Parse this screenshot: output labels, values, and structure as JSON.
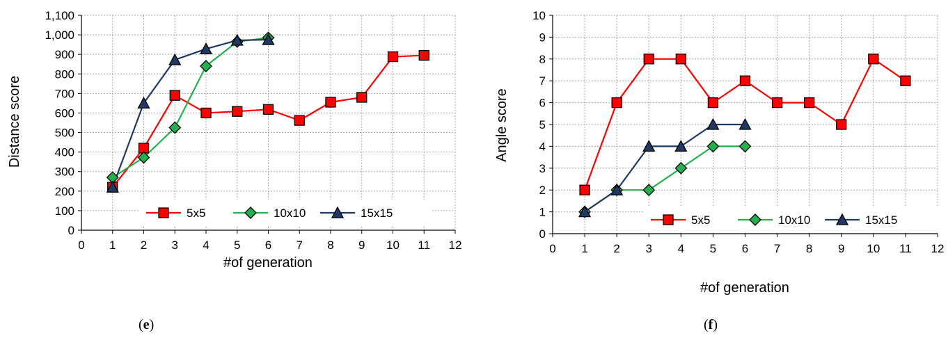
{
  "chart_data": [
    {
      "type": "line",
      "panel_label": "e",
      "title": "",
      "xlabel": "#of generation",
      "ylabel": "Distance score",
      "xlim": [
        0,
        12
      ],
      "ylim": [
        0,
        1100
      ],
      "xticks": [
        0,
        1,
        2,
        3,
        4,
        5,
        6,
        7,
        8,
        9,
        10,
        11,
        12
      ],
      "yticks": [
        0,
        100,
        200,
        300,
        400,
        500,
        600,
        700,
        800,
        900,
        1000,
        1100
      ],
      "ytick_labels": [
        "0",
        "100",
        "200",
        "300",
        "400",
        "500",
        "600",
        "700",
        "800",
        "900",
        "1,000",
        "1,100"
      ],
      "grid": true,
      "legend_position": "bottom-right",
      "series": [
        {
          "name": "5x5",
          "color": "#ff0000",
          "marker": "square",
          "x": [
            1,
            2,
            3,
            4,
            5,
            6,
            7,
            8,
            9,
            10,
            11
          ],
          "y": [
            220,
            420,
            690,
            600,
            608,
            618,
            562,
            655,
            680,
            888,
            895
          ]
        },
        {
          "name": "10x10",
          "color": "#22b14c",
          "marker": "diamond",
          "x": [
            1,
            2,
            3,
            4,
            5,
            6
          ],
          "y": [
            270,
            372,
            525,
            840,
            965,
            985
          ]
        },
        {
          "name": "15x15",
          "color": "#1f3864",
          "marker": "triangle",
          "x": [
            1,
            2,
            3,
            4,
            5,
            6
          ],
          "y": [
            220,
            650,
            872,
            928,
            972,
            975
          ]
        }
      ]
    },
    {
      "type": "line",
      "panel_label": "f",
      "title": "",
      "xlabel": "#of generation",
      "ylabel": "Angle score",
      "xlim": [
        0,
        12
      ],
      "ylim": [
        0,
        10
      ],
      "xticks": [
        0,
        1,
        2,
        3,
        4,
        5,
        6,
        7,
        8,
        9,
        10,
        11,
        12
      ],
      "yticks": [
        0,
        1,
        2,
        3,
        4,
        5,
        6,
        7,
        8,
        9,
        10
      ],
      "ytick_labels": [
        "0",
        "1",
        "2",
        "3",
        "4",
        "5",
        "6",
        "7",
        "8",
        "9",
        "10"
      ],
      "grid": true,
      "legend_position": "bottom-right",
      "series": [
        {
          "name": "5x5",
          "color": "#ff0000",
          "marker": "square",
          "x": [
            1,
            2,
            3,
            4,
            5,
            6,
            7,
            8,
            9,
            10,
            11
          ],
          "y": [
            2,
            6,
            8,
            8,
            6,
            7,
            6,
            6,
            5,
            8,
            7
          ]
        },
        {
          "name": "10x10",
          "color": "#22b14c",
          "marker": "diamond",
          "x": [
            1,
            2,
            3,
            4,
            5,
            6
          ],
          "y": [
            1,
            2,
            2,
            3,
            4,
            4
          ]
        },
        {
          "name": "15x15",
          "color": "#1f3864",
          "marker": "triangle",
          "x": [
            1,
            2,
            3,
            4,
            5,
            6
          ],
          "y": [
            1,
            2,
            4,
            4,
            5,
            5
          ]
        }
      ]
    }
  ]
}
